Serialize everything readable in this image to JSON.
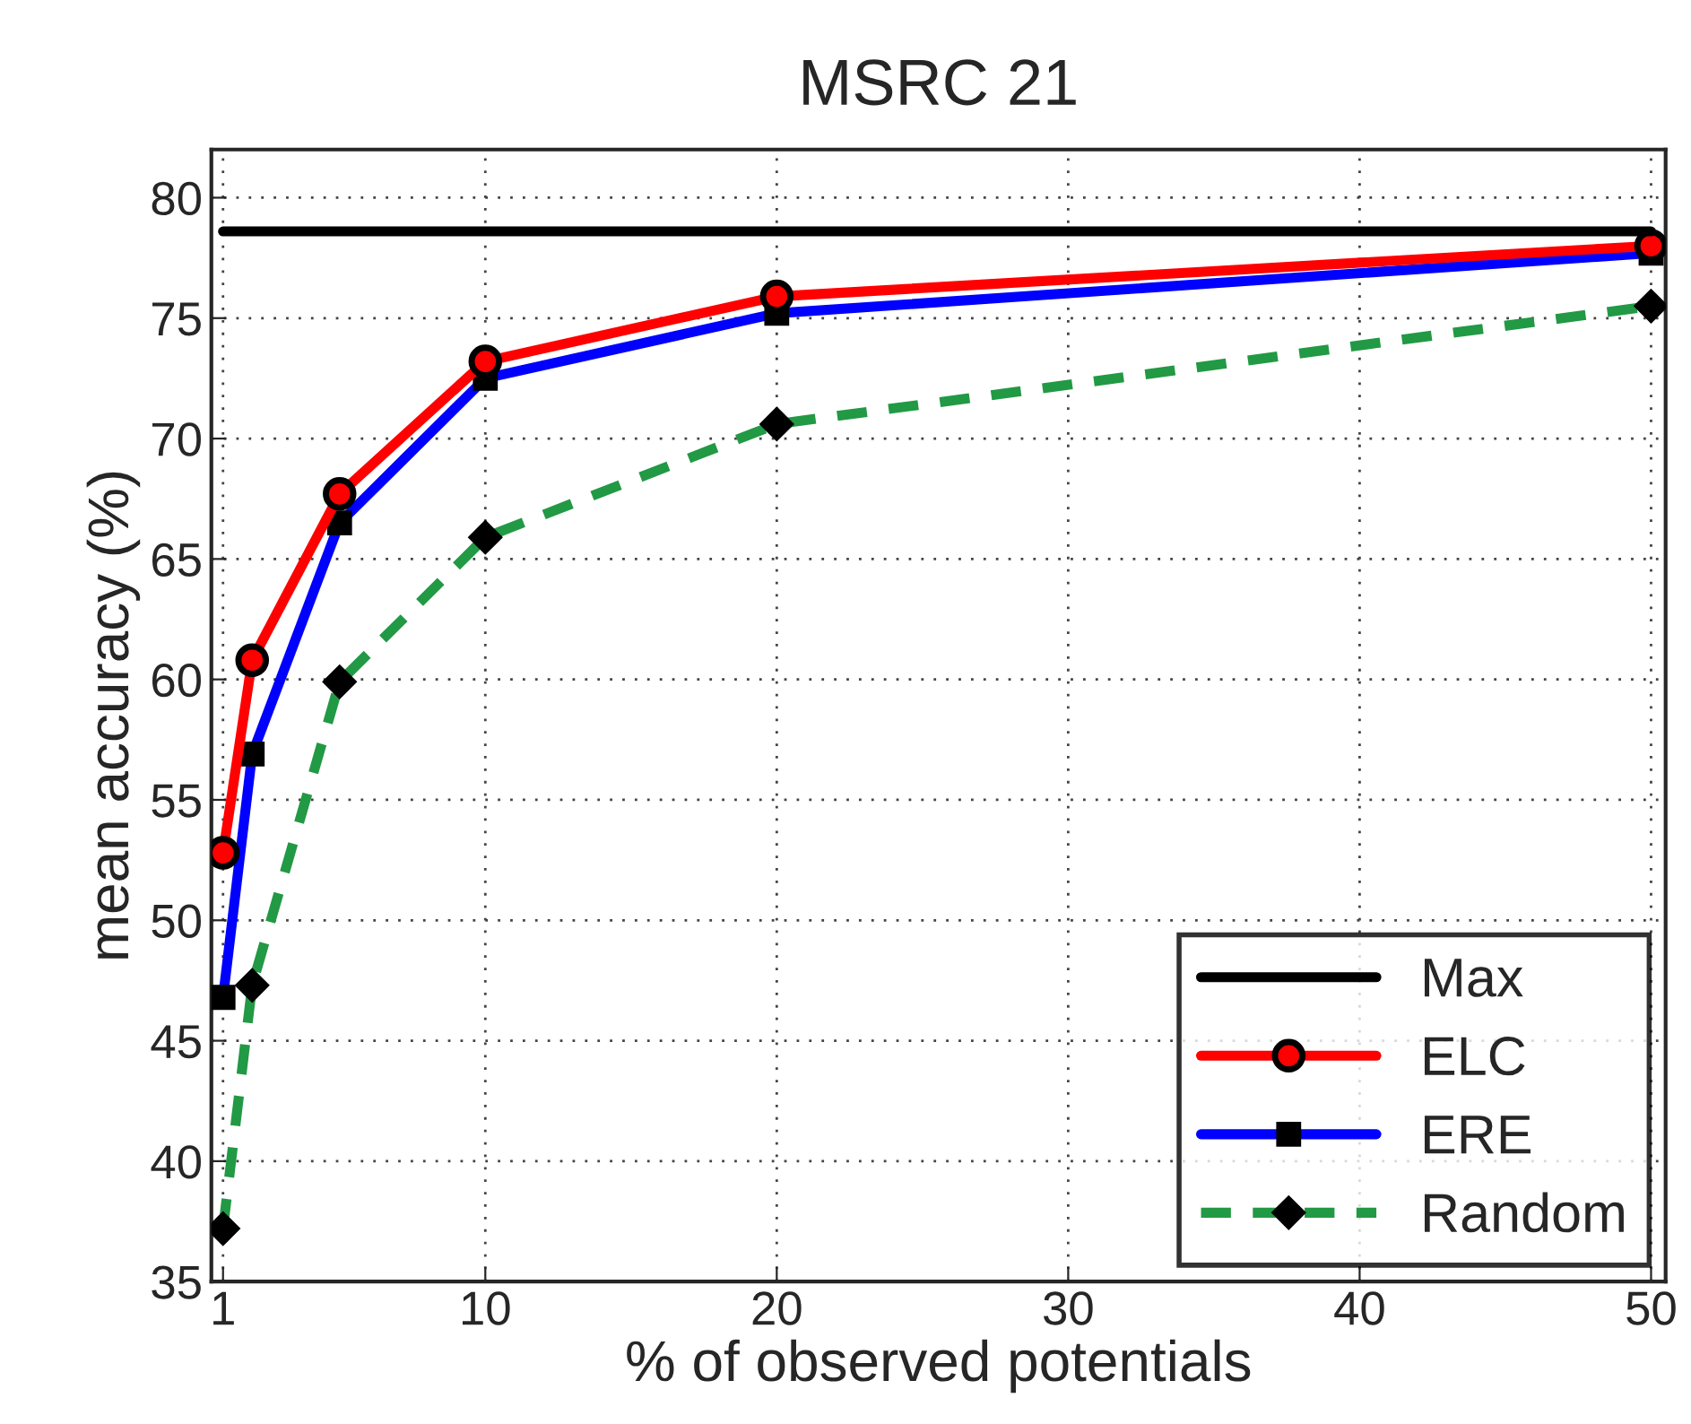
{
  "chart_data": {
    "type": "line",
    "title": "MSRC 21",
    "xlabel": "% of observed potentials",
    "ylabel": "mean accuracy (%)",
    "xlim": [
      0.6,
      50.5
    ],
    "xticks": [
      1,
      10,
      20,
      30,
      40,
      50
    ],
    "ylim": [
      35,
      82
    ],
    "yticks": [
      35,
      40,
      45,
      50,
      55,
      60,
      65,
      70,
      75,
      80
    ],
    "grid": true,
    "legend": "bottom right",
    "series": [
      {
        "name": "Max",
        "color": "#000000",
        "x": [
          1,
          50
        ],
        "values": [
          78.6,
          78.6
        ],
        "marker": "none",
        "line_style": "solid"
      },
      {
        "name": "ELC",
        "color": "#ff0000",
        "x": [
          1,
          2,
          5,
          10,
          20,
          50
        ],
        "values": [
          52.8,
          60.8,
          67.7,
          73.2,
          75.9,
          78.0
        ],
        "marker": "circle",
        "line_style": "solid"
      },
      {
        "name": "ERE",
        "color": "#0000ff",
        "x": [
          1,
          2,
          5,
          10,
          20,
          50
        ],
        "values": [
          46.8,
          56.9,
          66.5,
          72.5,
          75.2,
          77.7
        ],
        "marker": "square",
        "line_style": "solid"
      },
      {
        "name": "Random",
        "color": "#229944",
        "x": [
          1,
          2,
          5,
          10,
          20,
          50
        ],
        "values": [
          37.2,
          47.3,
          59.9,
          65.9,
          70.6,
          75.5
        ],
        "marker": "diamond",
        "line_style": "dashed"
      }
    ]
  }
}
